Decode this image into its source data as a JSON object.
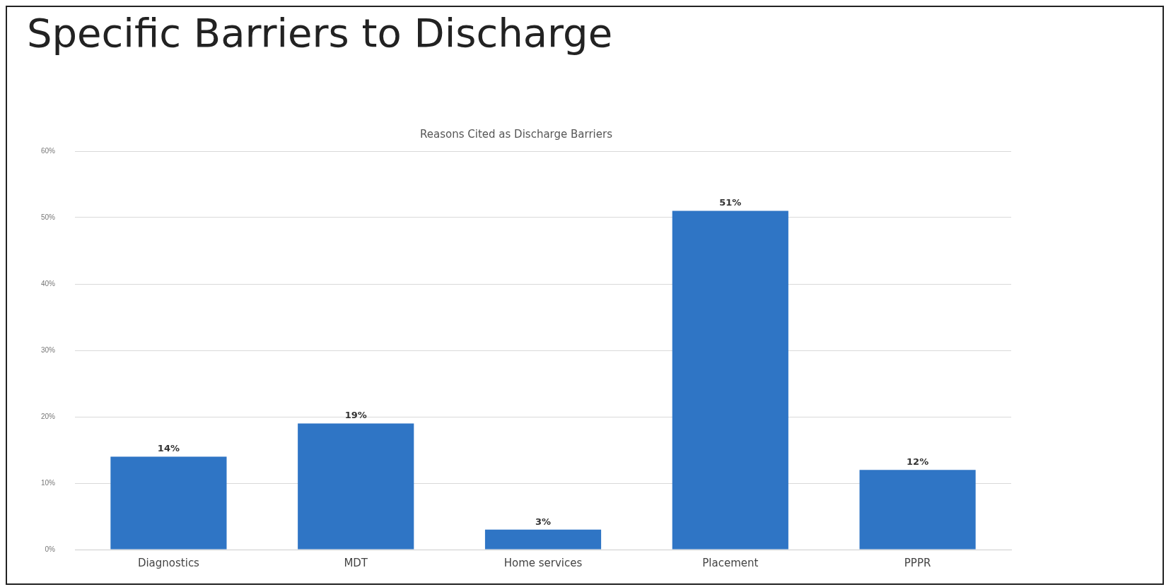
{
  "chart_data": {
    "type": "bar",
    "title": "Specific Barriers to Discharge",
    "subtitle": "Reasons Cited as Discharge Barriers",
    "categories": [
      "Diagnostics",
      "MDT",
      "Home services",
      "Placement",
      "PPPR"
    ],
    "values": [
      14,
      19,
      3,
      51,
      12
    ],
    "color": "#2f75c5",
    "value_labels": [
      "14%",
      "19%",
      "3%",
      "51%",
      "12%"
    ],
    "ylim": [
      0,
      60
    ],
    "yticks": [
      {
        "value": 0,
        "label": "0%"
      },
      {
        "value": 10,
        "label": "10%"
      },
      {
        "value": 20,
        "label": "20%"
      },
      {
        "value": 30,
        "label": "30%"
      },
      {
        "value": 40,
        "label": "40%"
      },
      {
        "value": 50,
        "label": "50%"
      },
      {
        "value": 60,
        "label": "60%"
      }
    ],
    "grid": "y",
    "legend": false
  }
}
